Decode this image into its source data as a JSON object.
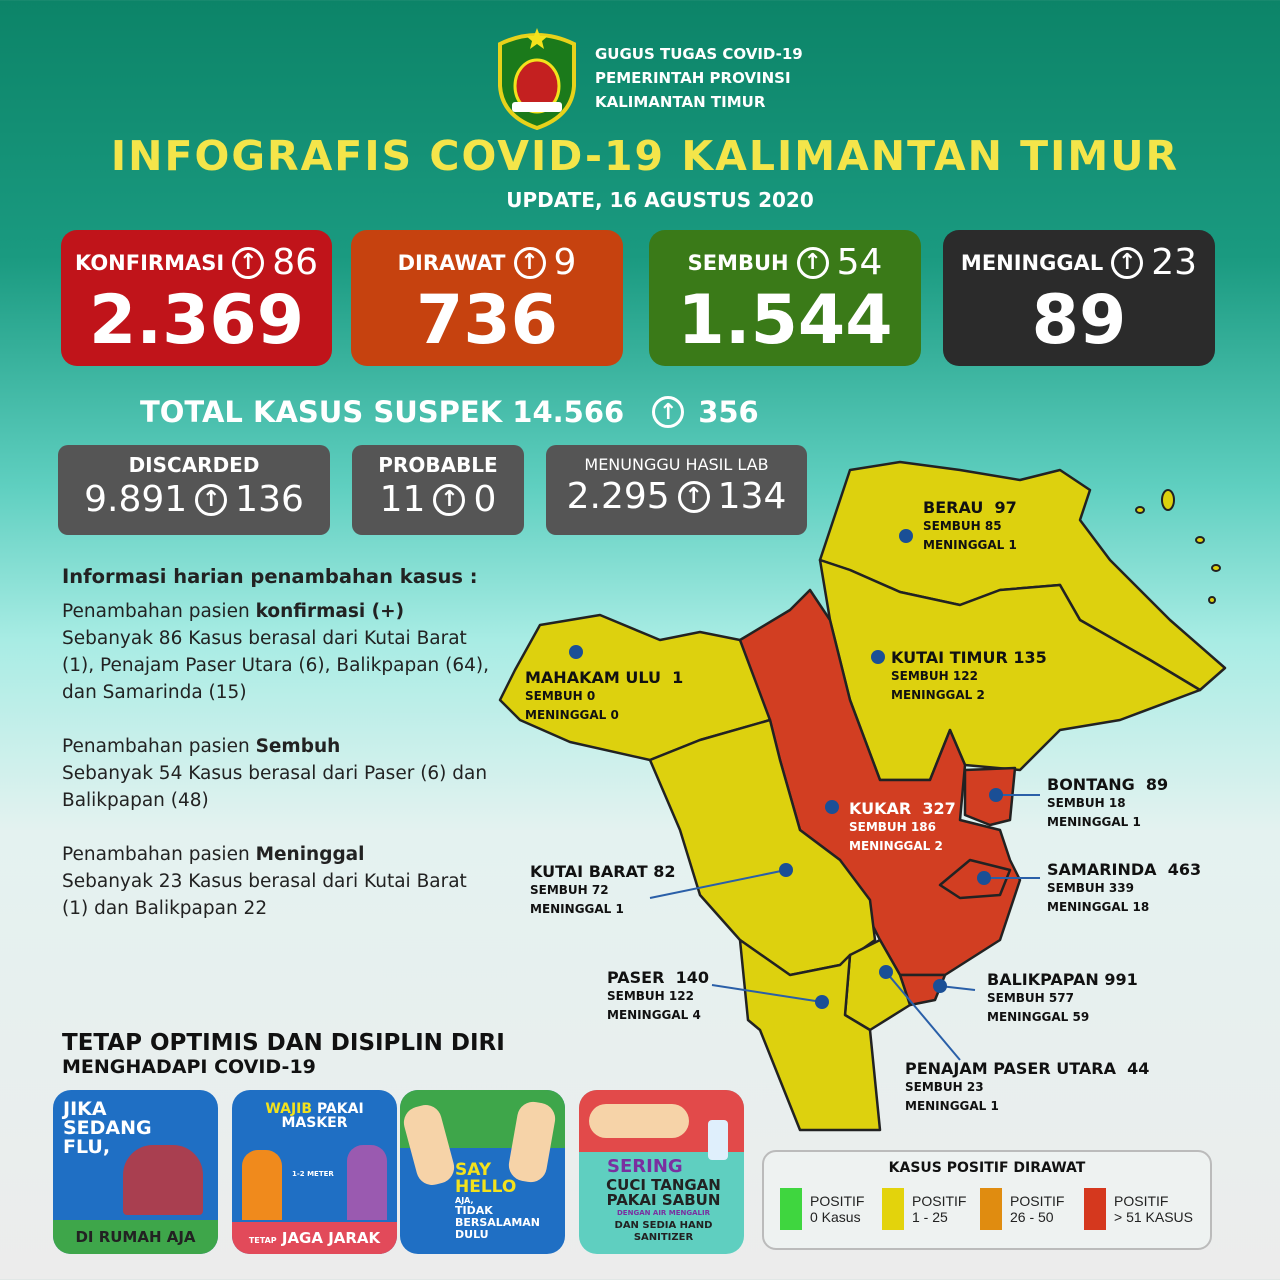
{
  "header": {
    "org_lines": [
      "GUGUS TUGAS COVID-19",
      "PEMERINTAH PROVINSI",
      "KALIMANTAN TIMUR"
    ],
    "title": "INFOGRAFIS COVID-19 KALIMANTAN TIMUR",
    "update": "UPDATE, 16 AGUSTUS 2020"
  },
  "stats": [
    {
      "label": "KONFIRMASI",
      "increase": "86",
      "value": "2.369",
      "color": "#c0141a"
    },
    {
      "label": "DIRAWAT",
      "increase": "9",
      "value": "736",
      "color": "#c6420f"
    },
    {
      "label": "SEMBUH",
      "increase": "54",
      "value": "1.544",
      "color": "#3a7a18"
    },
    {
      "label": "MENINGGAL",
      "increase": "23",
      "value": "89",
      "color": "#2b2b2b"
    }
  ],
  "suspek": {
    "label": "TOTAL KASUS SUSPEK 14.566",
    "increase": "356"
  },
  "sub_stats": [
    {
      "label": "DISCARDED",
      "value": "9.891",
      "increase": "136"
    },
    {
      "label": "PROBABLE",
      "value": "11",
      "increase": "0"
    },
    {
      "label": "MENUNGGU HASIL LAB",
      "value": "2.295",
      "increase": "134"
    }
  ],
  "info": {
    "heading": "Informasi harian penambahan kasus :",
    "blocks": [
      {
        "prefix": "Penambahan pasien ",
        "bold": "konfirmasi (+)",
        "text": "Sebanyak 86 Kasus berasal dari Kutai Barat (1), Penajam Paser Utara (6), Balikpapan (64), dan Samarinda (15)"
      },
      {
        "prefix": "Penambahan pasien ",
        "bold": "Sembuh",
        "text": "Sebanyak 54 Kasus berasal dari Paser (6) dan Balikpapan (48)"
      },
      {
        "prefix": "Penambahan pasien ",
        "bold": "Meninggal",
        "text": "Sebanyak 23 Kasus berasal dari Kutai Barat (1) dan Balikpapan 22"
      }
    ]
  },
  "motto": {
    "line1": "TETAP OPTIMIS DAN DISIPLIN DIRI",
    "line2": "MENGHADAPI COVID-19"
  },
  "posters": [
    {
      "top": "JIKA SEDANG FLU,",
      "bottom": "DI RUMAH AJA"
    },
    {
      "top_hl": "WAJIB",
      "top": "PAKAI MASKER",
      "mid": "1-2 METER",
      "pre": "TETAP",
      "bottom": "JAGA JARAK"
    },
    {
      "top": "SAY HELLO",
      "sub": "AJA,",
      "bottom": "TIDAK BERSALAMAN DULU"
    },
    {
      "top": "SERING",
      "mid": "CUCI TANGAN PAKAI SABUN",
      "sub": "DENGAN AIR MENGALIR",
      "bottom": "DAN SEDIA HAND SANITIZER"
    }
  ],
  "map": {
    "regions": [
      {
        "name": "BERAU",
        "total": "97",
        "sembuh": "SEMBUH 85",
        "meninggal": "MENINGGAL 1"
      },
      {
        "name": "KUTAI TIMUR",
        "total": "135",
        "sembuh": "SEMBUH 122",
        "meninggal": "MENINGGAL 2"
      },
      {
        "name": "MAHAKAM ULU",
        "total": "1",
        "sembuh": "SEMBUH 0",
        "meninggal": "MENINGGAL 0"
      },
      {
        "name": "BONTANG",
        "total": "89",
        "sembuh": "SEMBUH 18",
        "meninggal": "MENINGGAL 1"
      },
      {
        "name": "KUKAR",
        "total": "327",
        "sembuh": "SEMBUH 186",
        "meninggal": "MENINGGAL 2"
      },
      {
        "name": "KUTAI BARAT",
        "total": "82",
        "sembuh": "SEMBUH 72",
        "meninggal": "MENINGGAL 1"
      },
      {
        "name": "SAMARINDA",
        "total": "463",
        "sembuh": "SEMBUH 339",
        "meninggal": "MENINGGAL 18"
      },
      {
        "name": "PASER",
        "total": "140",
        "sembuh": "SEMBUH 122",
        "meninggal": "MENINGGAL 4"
      },
      {
        "name": "BALIKPAPAN",
        "total": "991",
        "sembuh": "SEMBUH 577",
        "meninggal": "MENINGGAL 59"
      },
      {
        "name": "PENAJAM PASER UTARA",
        "total": "44",
        "sembuh": "SEMBUH 23",
        "meninggal": "MENINGGAL 1"
      }
    ],
    "colors": {
      "yellow": "#ddd10e",
      "red": "#d23e22"
    }
  },
  "legend": {
    "title": "KASUS POSITIF DIRAWAT",
    "items": [
      {
        "l1": "POSITIF",
        "l2": "0 Kasus",
        "color": "#3fd63f"
      },
      {
        "l1": "POSITIF",
        "l2": "1 - 25",
        "color": "#e3d30c"
      },
      {
        "l1": "POSITIF",
        "l2": "26 - 50",
        "color": "#e08c10"
      },
      {
        "l1": "POSITIF",
        "l2": "> 51 KASUS",
        "color": "#d5381e"
      }
    ]
  }
}
